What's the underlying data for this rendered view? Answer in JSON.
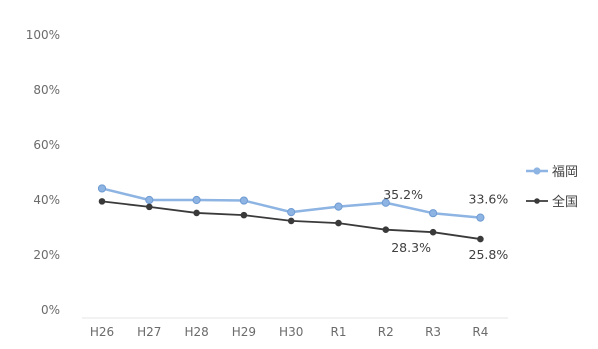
{
  "chart_data": {
    "type": "line",
    "categories": [
      "H26",
      "H27",
      "H28",
      "H29",
      "H30",
      "R1",
      "R2",
      "R3",
      "R4"
    ],
    "ylim": [
      0,
      100
    ],
    "yticks": [
      "0%",
      "20%",
      "40%",
      "60%",
      "80%",
      "100%"
    ],
    "grid": false,
    "legend": "right",
    "series": [
      {
        "name": "福岡",
        "color": "#8db4e2",
        "values": [
          44.2,
          40.0,
          40.0,
          39.8,
          35.6,
          37.6,
          39.0,
          35.2,
          33.6
        ],
        "data_labels": {
          "7": "35.2%",
          "8": "33.6%"
        }
      },
      {
        "name": "全国",
        "color": "#3a3a3a",
        "values": [
          39.5,
          37.5,
          35.3,
          34.5,
          32.4,
          31.6,
          29.2,
          28.3,
          25.8
        ],
        "data_labels": {
          "7": "28.3%",
          "8": "25.8%"
        }
      }
    ]
  }
}
